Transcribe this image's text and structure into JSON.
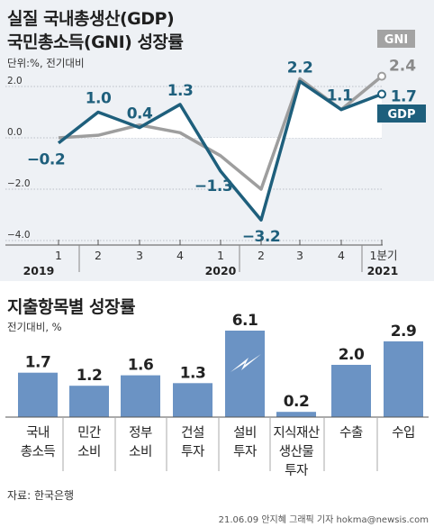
{
  "header": {
    "title_line1": "실질 국내총생산(GDP)",
    "title_line2": "국민총소득(GNI) 성장률",
    "unit": "단위:%, 전기대비"
  },
  "chart_data": [
    {
      "type": "line",
      "title": "실질 국내총생산(GDP) 국민총소득(GNI) 성장률",
      "unit": "단위:%, 전기대비",
      "categories": [
        "1",
        "2",
        "3",
        "4",
        "1",
        "2",
        "3",
        "4",
        "1분기"
      ],
      "year_labels": [
        "2019",
        "2020",
        "2021"
      ],
      "ylim": [
        -4.0,
        2.5
      ],
      "yticks": [
        "2.0",
        "0.0",
        "−2.0",
        "−4.0"
      ],
      "ytick_values": [
        2.0,
        0.0,
        -2.0,
        -4.0
      ],
      "series": [
        {
          "name": "GDP",
          "color": "#1e5f7c",
          "values": [
            -0.2,
            1.0,
            0.4,
            1.3,
            -1.3,
            -3.2,
            2.2,
            1.1,
            1.7
          ],
          "labels": [
            "−0.2",
            "1.0",
            "0.4",
            "1.3",
            "−1.3",
            "−3.2",
            "2.2",
            "1.1",
            "1.7"
          ]
        },
        {
          "name": "GNI",
          "color": "#9e9e9e",
          "values": [
            0.0,
            0.1,
            0.5,
            0.2,
            -0.7,
            -2.0,
            2.3,
            1.1,
            2.4
          ],
          "labels": [
            "2.4"
          ]
        }
      ]
    },
    {
      "type": "bar",
      "title": "지출항목별 성장률",
      "unit": "전기대비, %",
      "categories": [
        "국내\n총소득",
        "민간\n소비",
        "정부\n소비",
        "건설\n투자",
        "설비\n투자",
        "지식재산\n생산물\n투자",
        "수출",
        "수입"
      ],
      "values": [
        1.7,
        1.2,
        1.6,
        1.3,
        6.1,
        0.2,
        2.0,
        2.9
      ],
      "value_labels": [
        "1.7",
        "1.2",
        "1.6",
        "1.3",
        "6.1",
        "0.2",
        "2.0",
        "2.9"
      ],
      "broken_axis_bar": "설비\n투자",
      "color": "#6b93c4"
    }
  ],
  "bars_section": {
    "title": "지출항목별 성장률",
    "unit": "전기대비, %"
  },
  "footer": {
    "source": "자료: 한국은행",
    "credit": "21.06.09 안지혜 그래픽 기자 hokma@newsis.com"
  }
}
